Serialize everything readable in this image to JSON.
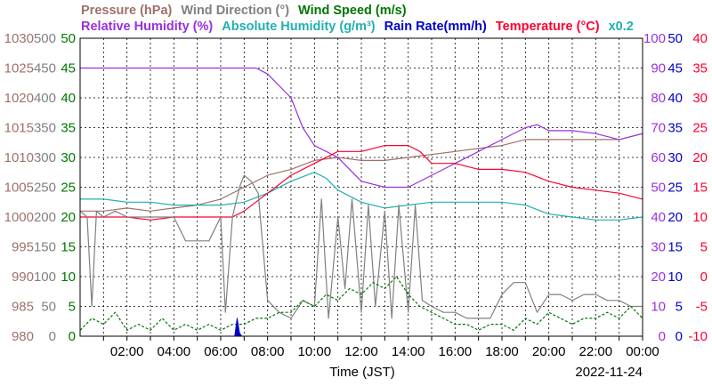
{
  "chart_data": {
    "type": "line",
    "date_label": "2022-11-24",
    "xlabel": "Time (JST)",
    "x_ticks": [
      "02:00",
      "04:00",
      "06:00",
      "08:00",
      "10:00",
      "12:00",
      "14:00",
      "16:00",
      "18:00",
      "20:00",
      "22:00",
      "00:00"
    ],
    "x_range_hours": [
      0,
      24
    ],
    "grid": true,
    "legend": {
      "row1": [
        {
          "label": "Pressure (hPa)",
          "color": "#a0706a"
        },
        {
          "label": "Wind Direction (°)",
          "color": "#808080"
        },
        {
          "label": "Wind Speed (m/s)",
          "color": "#007700"
        }
      ],
      "row2": [
        {
          "label": "Relative Humidity (%)",
          "color": "#9a30e0"
        },
        {
          "label": "Absolute Humidity (g/m³)",
          "color": "#20b0b0"
        },
        {
          "label": "Rain Rate(mm/h)",
          "color": "#0000cc"
        },
        {
          "label": "Temperature (°C)",
          "color": "#ff0030"
        },
        {
          "label": "x0.2",
          "color": "#20b0b0"
        }
      ]
    },
    "axes": {
      "pressure": {
        "color": "#a0706a",
        "range": [
          980,
          1030
        ],
        "ticks": [
          "980",
          "985",
          "990",
          "995",
          "1000",
          "1005",
          "1010",
          "1015",
          "1020",
          "1025",
          "1030"
        ]
      },
      "wind_direction": {
        "color": "#808080",
        "range": [
          0,
          500
        ],
        "ticks": [
          "0",
          "50",
          "100",
          "150",
          "200",
          "250",
          "300",
          "350",
          "400",
          "450",
          "500"
        ]
      },
      "wind_speed": {
        "color": "#007700",
        "range": [
          0,
          50
        ],
        "ticks": [
          "0",
          "5",
          "10",
          "15",
          "20",
          "25",
          "30",
          "35",
          "40",
          "45",
          "50"
        ]
      },
      "humidity": {
        "color": "#9a30e0",
        "range": [
          0,
          100
        ],
        "ticks": [
          "0",
          "10",
          "20",
          "30",
          "40",
          "50",
          "60",
          "70",
          "80",
          "90",
          "100"
        ]
      },
      "rain_rate": {
        "color": "#0000cc",
        "range": [
          0,
          50
        ],
        "ticks": [
          "0",
          "5",
          "10",
          "15",
          "20",
          "25",
          "30",
          "35",
          "40",
          "45",
          "50"
        ]
      },
      "temperature": {
        "color": "#ff0030",
        "range": [
          -10,
          40
        ],
        "ticks": [
          "-10",
          "-5",
          "0",
          "5",
          "10",
          "15",
          "20",
          "25",
          "30",
          "35",
          "40"
        ]
      }
    },
    "series": [
      {
        "name": "Pressure (hPa)",
        "axis": "pressure",
        "color": "#a0706a",
        "x": [
          0,
          1,
          2,
          3,
          4,
          5,
          6,
          7,
          8,
          9,
          10,
          11,
          12,
          13,
          14,
          15,
          16,
          17,
          18,
          19,
          20,
          21,
          22,
          23,
          24
        ],
        "y": [
          1001,
          1001,
          1001.5,
          1001,
          1001.5,
          1002,
          1003,
          1005,
          1007,
          1008,
          1009.5,
          1010,
          1009.5,
          1009.5,
          1010,
          1010.5,
          1011,
          1011.5,
          1012,
          1013,
          1013,
          1013,
          1013,
          1013,
          1014
        ]
      },
      {
        "name": "Relative Humidity (%)",
        "axis": "humidity",
        "color": "#9a30e0",
        "x": [
          0,
          1,
          2,
          3,
          4,
          5,
          6,
          7,
          7.5,
          8,
          9,
          9.5,
          10,
          10.5,
          11,
          11.5,
          12,
          13,
          14,
          15,
          16,
          17,
          18,
          19,
          19.5,
          20,
          21,
          22,
          23,
          24
        ],
        "y": [
          90,
          90,
          90,
          90,
          90,
          90,
          90,
          90,
          90,
          88,
          80,
          70,
          64,
          62,
          60,
          56,
          52,
          50,
          50,
          54,
          58,
          62,
          66,
          70,
          71,
          69,
          69,
          68,
          66,
          68
        ]
      },
      {
        "name": "Absolute Humidity (g/m³) x0.2",
        "axis": "humidity",
        "color": "#20b0b0",
        "x": [
          0,
          1,
          2,
          3,
          4,
          5,
          6,
          7,
          8,
          9,
          10,
          10.5,
          11,
          12,
          13,
          14,
          15,
          16,
          17,
          18,
          19,
          20,
          21,
          22,
          23,
          24
        ],
        "y": [
          46,
          46,
          45,
          45,
          44,
          44,
          44,
          45,
          48,
          52,
          55,
          53,
          49,
          45,
          43,
          44,
          45,
          45,
          45,
          45,
          44,
          41,
          40,
          39,
          39,
          40
        ]
      },
      {
        "name": "Temperature (°C)",
        "axis": "temperature",
        "color": "#ff0030",
        "x": [
          0,
          1,
          2,
          3,
          4,
          5,
          6,
          6.5,
          7,
          8,
          9,
          10,
          11,
          12,
          13,
          14,
          14.5,
          15,
          16,
          17,
          18,
          19,
          20,
          21,
          22,
          23,
          24
        ],
        "y": [
          10,
          10,
          10,
          9.5,
          10,
          10,
          10,
          10,
          11,
          14,
          17,
          19,
          21,
          21,
          22,
          22,
          21,
          19,
          19,
          18,
          18,
          17.5,
          16,
          15,
          14.5,
          14,
          13
        ]
      },
      {
        "name": "Wind Direction (°)",
        "axis": "wind_direction",
        "color": "#808080",
        "x": [
          0,
          0.3,
          0.5,
          0.7,
          1,
          1.5,
          2,
          2.5,
          3,
          3.5,
          4,
          4.5,
          5,
          5.5,
          6,
          6.2,
          6.5,
          6.8,
          7,
          7.3,
          7.6,
          8,
          8.5,
          9,
          9.5,
          10,
          10.3,
          10.6,
          11,
          11.3,
          11.6,
          12,
          12.3,
          12.6,
          13,
          13.3,
          13.6,
          14,
          14.3,
          14.6,
          15,
          15.5,
          16,
          16.5,
          17,
          17.5,
          18,
          18.5,
          19,
          19.5,
          20,
          20.5,
          21,
          21.5,
          22,
          22.5,
          23,
          23.5,
          24
        ],
        "y": [
          210,
          200,
          50,
          210,
          200,
          210,
          200,
          200,
          200,
          200,
          200,
          160,
          160,
          160,
          200,
          40,
          200,
          250,
          270,
          260,
          240,
          60,
          40,
          30,
          60,
          50,
          230,
          30,
          200,
          80,
          230,
          40,
          220,
          50,
          210,
          30,
          220,
          40,
          220,
          60,
          50,
          40,
          40,
          30,
          30,
          30,
          70,
          90,
          90,
          40,
          70,
          70,
          60,
          70,
          70,
          60,
          60,
          50,
          50
        ]
      },
      {
        "name": "Wind Speed (m/s)",
        "axis": "wind_speed",
        "color": "#007700",
        "x": [
          0,
          0.5,
          1,
          1.5,
          2,
          2.5,
          3,
          3.5,
          4,
          4.5,
          5,
          5.5,
          6,
          6.5,
          7,
          7.5,
          8,
          8.5,
          9,
          9.5,
          10,
          10.5,
          11,
          11.5,
          12,
          12.5,
          13,
          13.5,
          14,
          14.5,
          15,
          15.5,
          16,
          16.5,
          17,
          17.5,
          18,
          18.5,
          19,
          19.5,
          20,
          20.5,
          21,
          21.5,
          22,
          22.5,
          23,
          23.5,
          24
        ],
        "y": [
          1,
          3,
          2,
          4,
          1,
          2,
          1,
          3,
          1,
          2,
          1,
          2,
          1,
          2,
          2,
          3,
          3,
          4,
          4,
          6,
          5,
          7,
          6,
          8,
          7,
          9,
          8,
          10,
          7,
          5,
          4,
          3,
          2,
          2,
          1,
          2,
          2,
          1,
          3,
          2,
          4,
          3,
          2,
          3,
          3,
          4,
          3,
          5,
          3
        ]
      },
      {
        "name": "Rain Rate(mm/h)",
        "axis": "rain_rate",
        "color": "#0000cc",
        "x": [
          6.6,
          6.7,
          6.8,
          6.9
        ],
        "y": [
          0,
          3,
          0.5,
          0
        ]
      }
    ]
  }
}
